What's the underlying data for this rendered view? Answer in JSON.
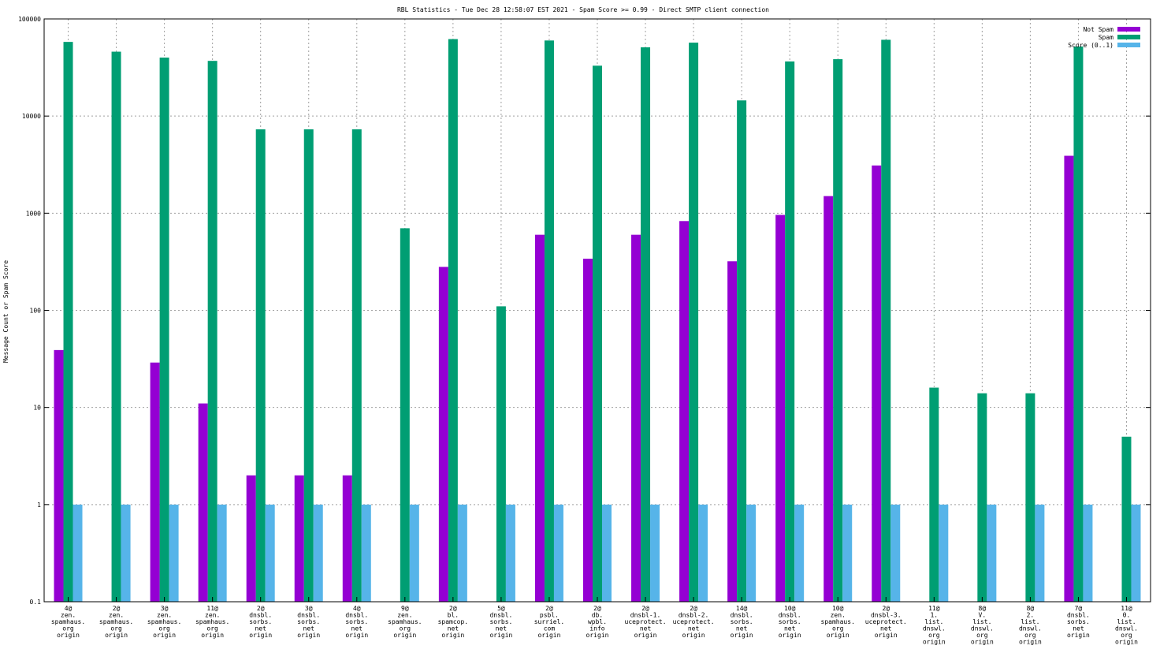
{
  "chart_data": {
    "type": "bar",
    "title": "RBL Statistics - Tue Dec 28 12:58:07 EST 2021 - Spam Score >= 0.99 - Direct SMTP client connection",
    "ylabel": "Message Count or Spam Score",
    "xlabel": "",
    "yscale": "log",
    "ylim": [
      0.1,
      100000
    ],
    "yticks": [
      "0.1",
      "1",
      "10",
      "100",
      "1000",
      "10000",
      "100000"
    ],
    "grid": true,
    "legend_position": "top-right",
    "categories": [
      [
        "4@",
        "zen.",
        "spamhaus.",
        "org",
        "origin"
      ],
      [
        "2@",
        "zen.",
        "spamhaus.",
        "org",
        "origin"
      ],
      [
        "3@",
        "zen.",
        "spamhaus.",
        "org",
        "origin"
      ],
      [
        "11@",
        "zen.",
        "spamhaus.",
        "org",
        "origin"
      ],
      [
        "2@",
        "dnsbl.",
        "sorbs.",
        "net",
        "origin"
      ],
      [
        "3@",
        "dnsbl.",
        "sorbs.",
        "net",
        "origin"
      ],
      [
        "4@",
        "dnsbl.",
        "sorbs.",
        "net",
        "origin"
      ],
      [
        "9@",
        "zen.",
        "spamhaus.",
        "org",
        "origin"
      ],
      [
        "2@",
        "bl.",
        "spamcop.",
        "net",
        "origin"
      ],
      [
        "5@",
        "dnsbl.",
        "sorbs.",
        "net",
        "origin"
      ],
      [
        "2@",
        "psbl.",
        "surriel.",
        "com",
        "origin"
      ],
      [
        "2@",
        "db.",
        "wpbl.",
        "info",
        "origin"
      ],
      [
        "2@",
        "dnsbl-1.",
        "uceprotect.",
        "net",
        "origin"
      ],
      [
        "2@",
        "dnsbl-2.",
        "uceprotect.",
        "net",
        "origin"
      ],
      [
        "14@",
        "dnsbl.",
        "sorbs.",
        "net",
        "origin"
      ],
      [
        "10@",
        "dnsbl.",
        "sorbs.",
        "net",
        "origin"
      ],
      [
        "10@",
        "zen.",
        "spamhaus.",
        "org",
        "origin"
      ],
      [
        "2@",
        "dnsbl-3.",
        "uceprotect.",
        "net",
        "origin"
      ],
      [
        "11@",
        "1.",
        "list.",
        "dnswl.",
        "org",
        "origin"
      ],
      [
        "8@",
        "V.",
        "list.",
        "dnswl.",
        "org",
        "origin"
      ],
      [
        "8@",
        "2.",
        "list.",
        "dnswl.",
        "org",
        "origin"
      ],
      [
        "7@",
        "dnsbl.",
        "sorbs.",
        "net",
        "origin"
      ],
      [
        "11@",
        "0.",
        "list.",
        "dnswl.",
        "org",
        "origin"
      ]
    ],
    "series": [
      {
        "name": "Not Spam",
        "color": "#9400d3",
        "values": [
          39,
          null,
          29,
          11,
          2,
          2,
          2,
          null,
          280,
          null,
          600,
          340,
          600,
          830,
          320,
          960,
          1500,
          3100,
          null,
          null,
          null,
          3900,
          null
        ]
      },
      {
        "name": "Spam",
        "color": "#009e73",
        "values": [
          58000,
          46000,
          40000,
          37000,
          7300,
          7300,
          7300,
          700,
          62000,
          110,
          60000,
          33000,
          51000,
          57000,
          14500,
          36500,
          38500,
          61000,
          16,
          14,
          14,
          52000,
          5
        ]
      },
      {
        "name": "Score (0..1)",
        "color": "#56b4e9",
        "values": [
          1,
          1,
          1,
          1,
          1,
          1,
          1,
          1,
          1,
          1,
          1,
          1,
          1,
          1,
          1,
          1,
          1,
          1,
          1,
          1,
          1,
          1,
          1
        ]
      }
    ]
  }
}
